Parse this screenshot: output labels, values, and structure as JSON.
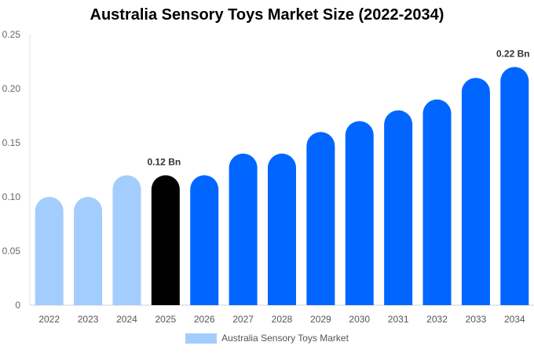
{
  "chart_data": {
    "type": "bar",
    "title": "Australia Sensory Toys Market Size (2022-2034)",
    "xlabel": "",
    "ylabel": "",
    "categories": [
      "2022",
      "2023",
      "2024",
      "2025",
      "2026",
      "2027",
      "2028",
      "2029",
      "2030",
      "2031",
      "2032",
      "2033",
      "2034"
    ],
    "series": [
      {
        "name": "Australia Sensory Toys Market",
        "values": [
          0.1,
          0.1,
          0.12,
          0.12,
          0.12,
          0.14,
          0.14,
          0.16,
          0.17,
          0.18,
          0.19,
          0.21,
          0.22
        ]
      }
    ],
    "ylim": [
      0,
      0.25
    ],
    "yticks": [
      "0",
      "0.05",
      "0.10",
      "0.15",
      "0.20",
      "0.25"
    ],
    "data_labels": [
      {
        "category": "2025",
        "text": "0.12 Bn"
      },
      {
        "category": "2034",
        "text": "0.22 Bn"
      }
    ],
    "bar_colors": [
      "#a2cdfd",
      "#a2cdfd",
      "#a2cdfd",
      "#000000",
      "#0066ff",
      "#0066ff",
      "#0066ff",
      "#0066ff",
      "#0066ff",
      "#0066ff",
      "#0066ff",
      "#0066ff",
      "#0066ff"
    ],
    "legend_color": "#a2cdfd",
    "legend_position": "bottom",
    "grid": false
  }
}
